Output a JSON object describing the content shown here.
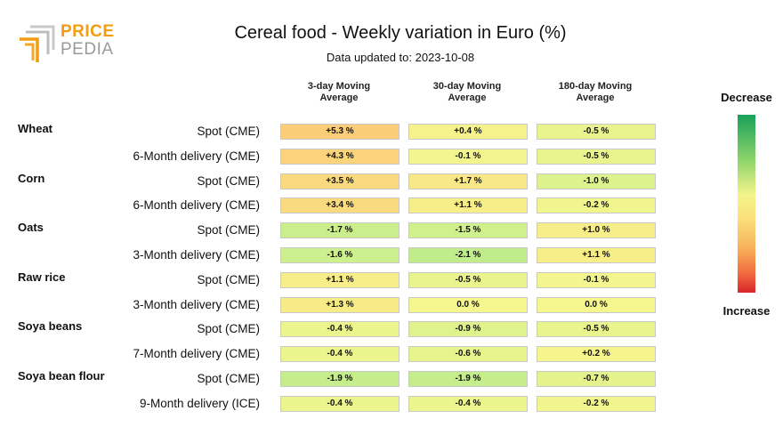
{
  "logo": {
    "word1": "PRICE",
    "word2": "PEDIA"
  },
  "title": "Cereal food - Weekly variation in Euro (%)",
  "subtitle": "Data updated to: 2023-10-08",
  "legend": {
    "top": "Decrease",
    "bottom": "Increase"
  },
  "chart_data": {
    "type": "table",
    "title": "Cereal food - Weekly variation in Euro (%)",
    "columns": [
      "3-day Moving Average",
      "30-day Moving Average",
      "180-day Moving Average"
    ],
    "column_lines": [
      [
        "3-day Moving",
        "Average"
      ],
      [
        "30-day Moving",
        "Average"
      ],
      [
        "180-day Moving",
        "Average"
      ]
    ],
    "color_scale": {
      "low_color": "#1aa05a",
      "mid_color": "#f6f68e",
      "high_color": "#d9252a",
      "low_label": "Decrease",
      "high_label": "Increase"
    },
    "groups": [
      {
        "name": "Wheat",
        "rows": [
          {
            "label": "Spot (CME)",
            "values": [
              5.3,
              0.4,
              -0.5
            ],
            "texts": [
              "+5.3 %",
              "+0.4 %",
              "-0.5 %"
            ]
          },
          {
            "label": "6-Month delivery (CME)",
            "values": [
              4.3,
              -0.1,
              -0.5
            ],
            "texts": [
              "+4.3 %",
              "-0.1 %",
              "-0.5 %"
            ]
          }
        ]
      },
      {
        "name": "Corn",
        "rows": [
          {
            "label": "Spot (CME)",
            "values": [
              3.5,
              1.7,
              -1.0
            ],
            "texts": [
              "+3.5 %",
              "+1.7 %",
              "-1.0 %"
            ]
          },
          {
            "label": "6-Month delivery (CME)",
            "values": [
              3.4,
              1.1,
              -0.2
            ],
            "texts": [
              "+3.4 %",
              "+1.1 %",
              "-0.2 %"
            ]
          }
        ]
      },
      {
        "name": "Oats",
        "rows": [
          {
            "label": "Spot (CME)",
            "values": [
              -1.7,
              -1.5,
              1.0
            ],
            "texts": [
              "-1.7 %",
              "-1.5 %",
              "+1.0 %"
            ]
          },
          {
            "label": "3-Month delivery (CME)",
            "values": [
              -1.6,
              -2.1,
              1.1
            ],
            "texts": [
              "-1.6 %",
              "-2.1 %",
              "+1.1 %"
            ]
          }
        ]
      },
      {
        "name": "Raw rice",
        "rows": [
          {
            "label": "Spot (CME)",
            "values": [
              1.1,
              -0.5,
              -0.1
            ],
            "texts": [
              "+1.1 %",
              "-0.5 %",
              "-0.1 %"
            ]
          },
          {
            "label": "3-Month delivery (CME)",
            "values": [
              1.3,
              0.0,
              0.0
            ],
            "texts": [
              "+1.3 %",
              "0.0 %",
              "0.0 %"
            ]
          }
        ]
      },
      {
        "name": "Soya beans",
        "rows": [
          {
            "label": "Spot (CME)",
            "values": [
              -0.4,
              -0.9,
              -0.5
            ],
            "texts": [
              "-0.4 %",
              "-0.9 %",
              "-0.5 %"
            ]
          },
          {
            "label": "7-Month delivery (CME)",
            "values": [
              -0.4,
              -0.6,
              0.2
            ],
            "texts": [
              "-0.4 %",
              "-0.6 %",
              "+0.2 %"
            ]
          }
        ]
      },
      {
        "name": "Soya bean flour",
        "rows": [
          {
            "label": "Spot (CME)",
            "values": [
              -1.9,
              -1.9,
              -0.7
            ],
            "texts": [
              "-1.9 %",
              "-1.9 %",
              "-0.7 %"
            ]
          },
          {
            "label": "9-Month delivery (ICE)",
            "values": [
              -0.4,
              -0.4,
              -0.2
            ],
            "texts": [
              "-0.4 %",
              "-0.4 %",
              "-0.2 %"
            ]
          }
        ]
      }
    ]
  }
}
